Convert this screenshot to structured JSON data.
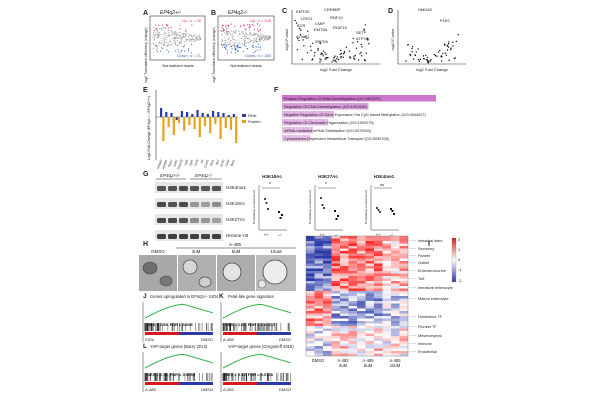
{
  "panels": {
    "A": {
      "letter": "A",
      "title": "EP4q2+/-",
      "up": "Up, n = 28",
      "down": "Down, n = 71",
      "xlabel": "Normalized reads",
      "ylabel": "log2 Translation efficiency (change)",
      "ticks": [
        "10",
        "10",
        "10",
        "10"
      ]
    },
    "B": {
      "letter": "B",
      "title": "EP4q2-/-",
      "up": "Up, n = 158",
      "down": "Down, n = 283",
      "xlabel": "Normalized reads",
      "ylabel": "log2 Translation efficiency (change)",
      "ticks": [
        "10",
        "10",
        "10",
        "10"
      ]
    },
    "C": {
      "letter": "C",
      "genes": [
        "KMT2D",
        "CREBBP",
        "LRIG1",
        "RNF10",
        "BCR",
        "CMIP",
        "KMT5A",
        "TRAF19",
        "AGAP1",
        "ZBED6",
        "SET",
        "ATP2B"
      ],
      "xlabel": "log2 Fold Change",
      "ylabel": "-log10 P-value"
    },
    "D": {
      "letter": "D",
      "genes": [
        "HMGA2",
        "PLEC"
      ],
      "xlabel": "log2 Fold Change",
      "ylabel": "-log10 P-value"
    },
    "E": {
      "letter": "E",
      "ylabel": "Log2 Fold Change (EP4q2-/- / EP4q2+/+)",
      "legend": [
        {
          "name": "RNA",
          "color": "#2b3aa8"
        },
        {
          "name": "Protein",
          "color": "#e8a21a"
        }
      ]
    },
    "F": {
      "letter": "F",
      "terms": [
        {
          "label": "Positive Regulation Of DNA Demethylation (GO:1901537)",
          "strength": 1.0
        },
        {
          "label": "Regulation Of DNA Demethylation (GO:1901535)",
          "strength": 0.55
        },
        {
          "label": "Negative Regulation Of Gene Expression Via CpG Island Methylation (GO:0044027)",
          "strength": 0.32
        },
        {
          "label": "Regulation Of Chromatin Organization (GO:1902275)",
          "strength": 0.28
        },
        {
          "label": "mRNA-mediated mRNA Stabilization (GO:0070934)",
          "strength": 0.18
        },
        {
          "label": "Cytoskeleton-Dependent Intracellular Transport (GO:0030705)",
          "strength": 0.16
        }
      ]
    },
    "G": {
      "letter": "G",
      "group1": "EP4q2+/+",
      "group2": "EP4q2-/-",
      "bands": [
        "H3K4me1",
        "H3K18Ac",
        "H3K27Ac",
        "Histone H3"
      ],
      "plots": [
        {
          "title": "H3K18Ac",
          "sig": "*",
          "ylabel": "Normalized to Histone H3",
          "x": [
            "+/+",
            "-/-"
          ],
          "g1": [
            1.55,
            1.35,
            1.05
          ],
          "g2": [
            0.9,
            0.6,
            0.75
          ],
          "ylim": [
            0,
            2
          ]
        },
        {
          "title": "H3K27Ac",
          "sig": "*",
          "ylabel": "Normalized to Histone H3",
          "x": [
            "+/+",
            "-/-"
          ],
          "g1": [
            1.6,
            1.25,
            1.1
          ],
          "g2": [
            0.95,
            0.55,
            0.7
          ],
          "ylim": [
            0,
            2
          ]
        },
        {
          "title": "H3K4me1",
          "sig": "ns",
          "ylabel": "Normalized to Histone H3",
          "x": [
            "+/+",
            "-/-"
          ],
          "g1": [
            1.1,
            1.0,
            0.9
          ],
          "g2": [
            1.05,
            0.95,
            0.8
          ],
          "ylim": [
            0,
            2
          ]
        }
      ]
    },
    "H": {
      "letter": "H",
      "drug": "A-485",
      "conditions": [
        "DMSO",
        "3uM",
        "5uM",
        "10uM"
      ]
    },
    "I": {
      "letter": "I",
      "scale": [
        "2",
        "1",
        "0",
        "-1",
        "-2"
      ],
      "categories": [
        "Intestinal stem",
        "Secretory",
        "Paneth",
        "Goblet",
        "Enteroendocrine",
        "Tuft",
        "Immature enterocyte",
        "Mature enterocyte",
        "Homeobox TF",
        "Pioneer TF",
        "Mesenchymal",
        "Immune",
        "Endothelial"
      ],
      "xgroups": [
        {
          "name": "DMSO",
          "sub": ""
        },
        {
          "name": "A-485",
          "sub": "3uM"
        },
        {
          "name": "A-485",
          "sub": "5uM"
        },
        {
          "name": "A-485",
          "sub": "10uM"
        }
      ]
    },
    "J": {
      "letter": "J",
      "title": "Genes upregulated in EP4q2-/- SIOs",
      "stats": "NES = 2.89, FDR = 0.005",
      "left": "SIOs",
      "right": "DMSO"
    },
    "K": {
      "letter": "K",
      "title": "Fetal-like gene signature",
      "stats": "NES = 2.51, FDR < 1 x 10-5",
      "left": "A-485",
      "right": "DMSO"
    },
    "L": {
      "letter": "L",
      "title": "YAP-target genes (Barry 2013)",
      "stats": "NES = 2.18, FDR = 0.0085",
      "left": "A-485",
      "right": "DMSO"
    },
    "M": {
      "letter": "",
      "title": "YAP-target genes (Gregorieff 2015)",
      "stats": "NES = 3.10, FDR = 0.0108",
      "left": "A-485",
      "right": "DMSO"
    }
  }
}
